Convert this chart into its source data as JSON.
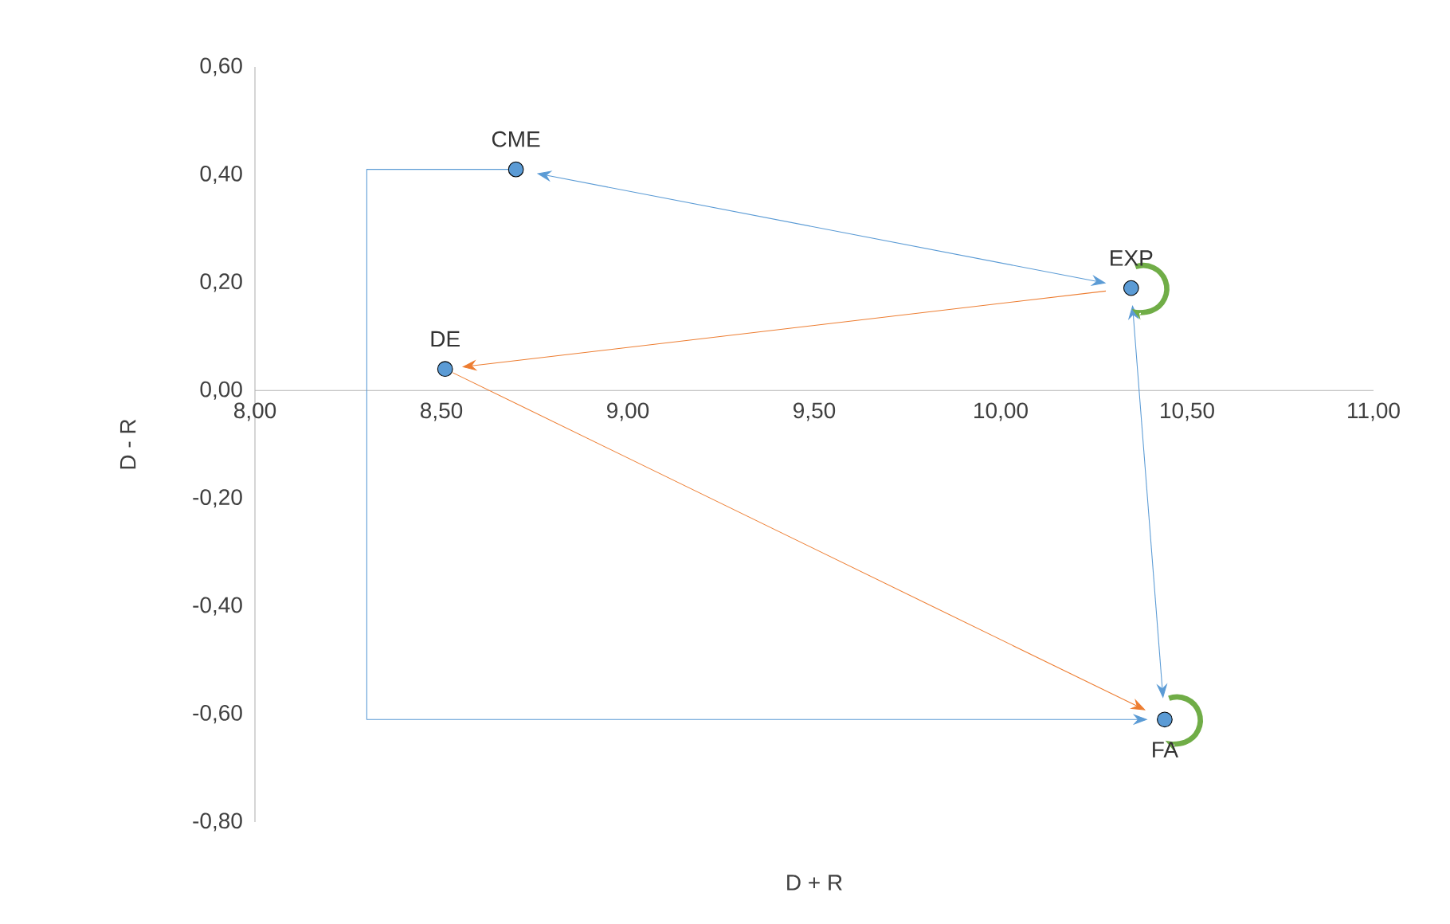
{
  "chart_data": {
    "type": "scatter",
    "xlabel": "D + R",
    "ylabel": "D - R",
    "x": [
      8.7,
      10.35,
      8.51,
      10.44
    ],
    "values": [
      0.41,
      0.19,
      0.04,
      -0.61
    ],
    "color": "#5b9bd5",
    "marker": "circle",
    "xlim": [
      8,
      11
    ],
    "ylim": [
      -0.8,
      0.6
    ],
    "xticks": [
      {
        "value": 8,
        "label": "8,00"
      },
      {
        "value": 8.5,
        "label": "8,50"
      },
      {
        "value": 9,
        "label": "9,00"
      },
      {
        "value": 9.5,
        "label": "9,50"
      },
      {
        "value": 10,
        "label": "10,00"
      },
      {
        "value": 10.5,
        "label": "10,50"
      },
      {
        "value": 11,
        "label": "11,00"
      }
    ],
    "yticks": [
      {
        "value": -0.8,
        "label": "-0,80"
      },
      {
        "value": -0.6,
        "label": "-0,60"
      },
      {
        "value": -0.4,
        "label": "-0,40"
      },
      {
        "value": -0.2,
        "label": "-0,20"
      },
      {
        "value": 0,
        "label": "0,00"
      },
      {
        "value": 0.2,
        "label": "0,20"
      },
      {
        "value": 0.4,
        "label": "0,40"
      },
      {
        "value": 0.6,
        "label": "0,60"
      }
    ],
    "annotations": [
      {
        "text": "CME",
        "x": 8.7,
        "y": 0.41
      },
      {
        "text": "EXP",
        "x": 10.35,
        "y": 0.19
      },
      {
        "text": "DE",
        "x": 8.51,
        "y": 0.04
      },
      {
        "text": "FA",
        "x": 10.44,
        "y": -0.61
      }
    ]
  }
}
